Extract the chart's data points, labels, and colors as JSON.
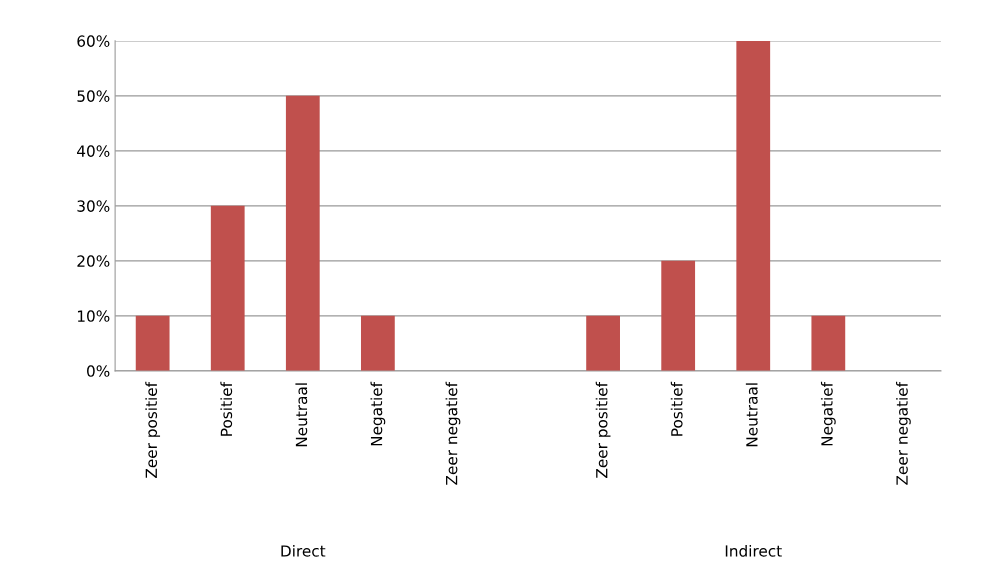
{
  "chart_data": {
    "type": "bar",
    "categories": [
      "Zeer positief",
      "Positief",
      "Neutraal",
      "Negatief",
      "Zeer negatief",
      null,
      "Zeer positief",
      "Positief",
      "Neutraal",
      "Negatief",
      "Zeer negatief"
    ],
    "values": [
      10,
      30,
      50,
      10,
      0,
      null,
      10,
      20,
      60,
      10,
      0
    ],
    "color": "#c0504d",
    "ylim": [
      0,
      60
    ],
    "yticks": [
      {
        "value": 0,
        "label": "0%"
      },
      {
        "value": 10,
        "label": "10%"
      },
      {
        "value": 20,
        "label": "20%"
      },
      {
        "value": 30,
        "label": "30%"
      },
      {
        "value": 40,
        "label": "40%"
      },
      {
        "value": 50,
        "label": "50%"
      },
      {
        "value": 60,
        "label": "60%"
      }
    ],
    "grid": "y",
    "annotations": [
      "Direct",
      "Indirect"
    ]
  }
}
